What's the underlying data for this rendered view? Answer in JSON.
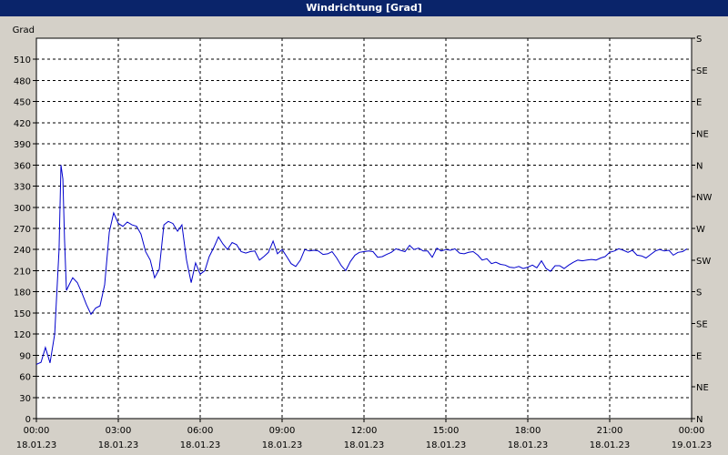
{
  "window": {
    "title": "Windrichtung [Grad]"
  },
  "colors": {
    "background": "#d4d0c8",
    "plot": "#ffffff",
    "line": "#0000cc",
    "title_bar": "#0a246a"
  },
  "chart_data": {
    "type": "line",
    "title": "Windrichtung [Grad]",
    "ylabel": "Grad",
    "ylim": [
      0,
      540
    ],
    "xlim_hours": [
      0,
      24
    ],
    "grid": true,
    "y_ticks": [
      0,
      30,
      60,
      90,
      120,
      150,
      180,
      210,
      240,
      270,
      300,
      330,
      360,
      390,
      420,
      450,
      480,
      510
    ],
    "right_ticks": [
      {
        "value": 0,
        "label": "N"
      },
      {
        "value": 45,
        "label": "NE"
      },
      {
        "value": 90,
        "label": "E"
      },
      {
        "value": 135,
        "label": "SE"
      },
      {
        "value": 180,
        "label": "S"
      },
      {
        "value": 225,
        "label": "SW"
      },
      {
        "value": 270,
        "label": "W"
      },
      {
        "value": 315,
        "label": "NW"
      },
      {
        "value": 360,
        "label": "N"
      },
      {
        "value": 405,
        "label": "NE"
      },
      {
        "value": 450,
        "label": "E"
      },
      {
        "value": 495,
        "label": "SE"
      },
      {
        "value": 540,
        "label": "S"
      }
    ],
    "x_ticks": [
      {
        "h": 0,
        "time": "00:00",
        "date": "18.01.23"
      },
      {
        "h": 3,
        "time": "03:00",
        "date": "18.01.23"
      },
      {
        "h": 6,
        "time": "06:00",
        "date": "18.01.23"
      },
      {
        "h": 9,
        "time": "09:00",
        "date": "18.01.23"
      },
      {
        "h": 12,
        "time": "12:00",
        "date": "18.01.23"
      },
      {
        "h": 15,
        "time": "15:00",
        "date": "18.01.23"
      },
      {
        "h": 18,
        "time": "18:00",
        "date": "18.01.23"
      },
      {
        "h": 21,
        "time": "21:00",
        "date": "18.01.23"
      },
      {
        "h": 24,
        "time": "00:00",
        "date": "19.01.23"
      }
    ],
    "series": [
      {
        "values": [
          [
            0.0,
            77
          ],
          [
            0.17,
            80
          ],
          [
            0.33,
            101
          ],
          [
            0.5,
            79
          ],
          [
            0.67,
            120
          ],
          [
            0.83,
            240
          ],
          [
            0.9,
            360
          ],
          [
            0.97,
            340
          ],
          [
            1.03,
            255
          ],
          [
            1.1,
            182
          ],
          [
            1.2,
            190
          ],
          [
            1.33,
            200
          ],
          [
            1.5,
            193
          ],
          [
            1.67,
            178
          ],
          [
            1.83,
            162
          ],
          [
            2.0,
            148
          ],
          [
            2.17,
            157
          ],
          [
            2.33,
            160
          ],
          [
            2.5,
            190
          ],
          [
            2.67,
            265
          ],
          [
            2.83,
            292
          ],
          [
            3.0,
            277
          ],
          [
            3.17,
            273
          ],
          [
            3.33,
            279
          ],
          [
            3.5,
            275
          ],
          [
            3.67,
            273
          ],
          [
            3.83,
            262
          ],
          [
            4.0,
            237
          ],
          [
            4.17,
            225
          ],
          [
            4.33,
            200
          ],
          [
            4.5,
            212
          ],
          [
            4.67,
            275
          ],
          [
            4.83,
            280
          ],
          [
            5.0,
            277
          ],
          [
            5.17,
            266
          ],
          [
            5.33,
            275
          ],
          [
            5.5,
            225
          ],
          [
            5.67,
            193
          ],
          [
            5.83,
            221
          ],
          [
            6.0,
            205
          ],
          [
            6.17,
            210
          ],
          [
            6.33,
            230
          ],
          [
            6.5,
            243
          ],
          [
            6.67,
            258
          ],
          [
            6.83,
            248
          ],
          [
            7.0,
            240
          ],
          [
            7.17,
            250
          ],
          [
            7.33,
            247
          ],
          [
            7.5,
            237
          ],
          [
            7.67,
            235
          ],
          [
            7.83,
            237
          ],
          [
            8.0,
            238
          ],
          [
            8.17,
            225
          ],
          [
            8.33,
            230
          ],
          [
            8.5,
            236
          ],
          [
            8.67,
            252
          ],
          [
            8.83,
            234
          ],
          [
            9.0,
            240
          ],
          [
            9.17,
            230
          ],
          [
            9.33,
            220
          ],
          [
            9.5,
            216
          ],
          [
            9.67,
            225
          ],
          [
            9.83,
            240
          ],
          [
            10.0,
            238
          ],
          [
            10.17,
            239
          ],
          [
            10.33,
            238
          ],
          [
            10.5,
            233
          ],
          [
            10.67,
            234
          ],
          [
            10.83,
            237
          ],
          [
            11.0,
            228
          ],
          [
            11.17,
            217
          ],
          [
            11.33,
            210
          ],
          [
            11.5,
            223
          ],
          [
            11.67,
            232
          ],
          [
            11.83,
            236
          ],
          [
            12.0,
            237
          ],
          [
            12.17,
            238
          ],
          [
            12.33,
            237
          ],
          [
            12.5,
            229
          ],
          [
            12.67,
            230
          ],
          [
            12.83,
            233
          ],
          [
            13.0,
            236
          ],
          [
            13.17,
            241
          ],
          [
            13.33,
            239
          ],
          [
            13.5,
            237
          ],
          [
            13.67,
            246
          ],
          [
            13.83,
            240
          ],
          [
            14.0,
            242
          ],
          [
            14.17,
            238
          ],
          [
            14.33,
            238
          ],
          [
            14.5,
            229
          ],
          [
            14.67,
            242
          ],
          [
            14.83,
            238
          ],
          [
            15.0,
            240
          ],
          [
            15.17,
            239
          ],
          [
            15.33,
            241
          ],
          [
            15.5,
            235
          ],
          [
            15.67,
            234
          ],
          [
            15.83,
            236
          ],
          [
            16.0,
            237
          ],
          [
            16.17,
            232
          ],
          [
            16.33,
            225
          ],
          [
            16.5,
            227
          ],
          [
            16.67,
            220
          ],
          [
            16.83,
            222
          ],
          [
            17.0,
            219
          ],
          [
            17.17,
            218
          ],
          [
            17.33,
            215
          ],
          [
            17.5,
            214
          ],
          [
            17.67,
            216
          ],
          [
            17.83,
            213
          ],
          [
            18.0,
            215
          ],
          [
            18.17,
            218
          ],
          [
            18.33,
            214
          ],
          [
            18.5,
            224
          ],
          [
            18.67,
            213
          ],
          [
            18.83,
            209
          ],
          [
            19.0,
            217
          ],
          [
            19.17,
            217
          ],
          [
            19.33,
            213
          ],
          [
            19.5,
            218
          ],
          [
            19.67,
            222
          ],
          [
            19.83,
            225
          ],
          [
            20.0,
            224
          ],
          [
            20.17,
            225
          ],
          [
            20.33,
            226
          ],
          [
            20.5,
            225
          ],
          [
            20.67,
            228
          ],
          [
            20.83,
            230
          ],
          [
            21.0,
            236
          ],
          [
            21.17,
            238
          ],
          [
            21.33,
            241
          ],
          [
            21.5,
            239
          ],
          [
            21.67,
            236
          ],
          [
            21.83,
            239
          ],
          [
            22.0,
            232
          ],
          [
            22.17,
            231
          ],
          [
            22.33,
            228
          ],
          [
            22.5,
            233
          ],
          [
            22.67,
            238
          ],
          [
            22.83,
            240
          ],
          [
            23.0,
            238
          ],
          [
            23.17,
            239
          ],
          [
            23.33,
            232
          ],
          [
            23.5,
            236
          ],
          [
            23.67,
            237
          ],
          [
            23.83,
            241
          ]
        ]
      }
    ]
  }
}
